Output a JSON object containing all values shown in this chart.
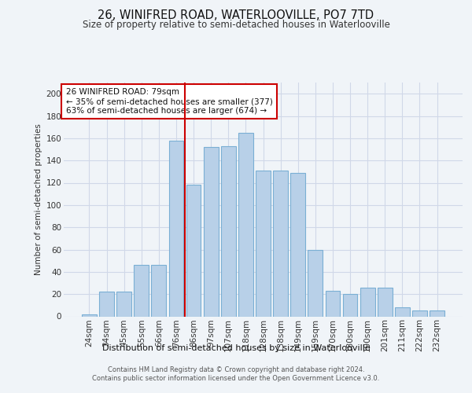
{
  "title": "26, WINIFRED ROAD, WATERLOOVILLE, PO7 7TD",
  "subtitle": "Size of property relative to semi-detached houses in Waterlooville",
  "xlabel": "Distribution of semi-detached houses by size in Waterlooville",
  "ylabel": "Number of semi-detached properties",
  "categories": [
    "24sqm",
    "34sqm",
    "45sqm",
    "55sqm",
    "66sqm",
    "76sqm",
    "86sqm",
    "97sqm",
    "107sqm",
    "118sqm",
    "128sqm",
    "138sqm",
    "149sqm",
    "159sqm",
    "170sqm",
    "180sqm",
    "190sqm",
    "201sqm",
    "211sqm",
    "222sqm",
    "232sqm"
  ],
  "values": [
    2,
    22,
    22,
    46,
    46,
    158,
    118,
    152,
    153,
    165,
    131,
    131,
    129,
    60,
    23,
    20,
    26,
    26,
    8,
    5,
    5
  ],
  "bar_color": "#b8d0e8",
  "bar_edge_color": "#7aafd4",
  "property_label": "26 WINIFRED ROAD: 79sqm",
  "pct_smaller": 35,
  "pct_larger": 63,
  "count_smaller": 377,
  "count_larger": 674,
  "vline_color": "#cc0000",
  "annotation_box_edge_color": "#cc0000",
  "ylim": [
    0,
    210
  ],
  "yticks": [
    0,
    20,
    40,
    60,
    80,
    100,
    120,
    140,
    160,
    180,
    200
  ],
  "grid_color": "#d0d8e8",
  "footer_line1": "Contains HM Land Registry data © Crown copyright and database right 2024.",
  "footer_line2": "Contains public sector information licensed under the Open Government Licence v3.0.",
  "title_fontsize": 10.5,
  "subtitle_fontsize": 8.5,
  "bg_color": "#f0f4f8",
  "tick_fontsize": 7.5
}
